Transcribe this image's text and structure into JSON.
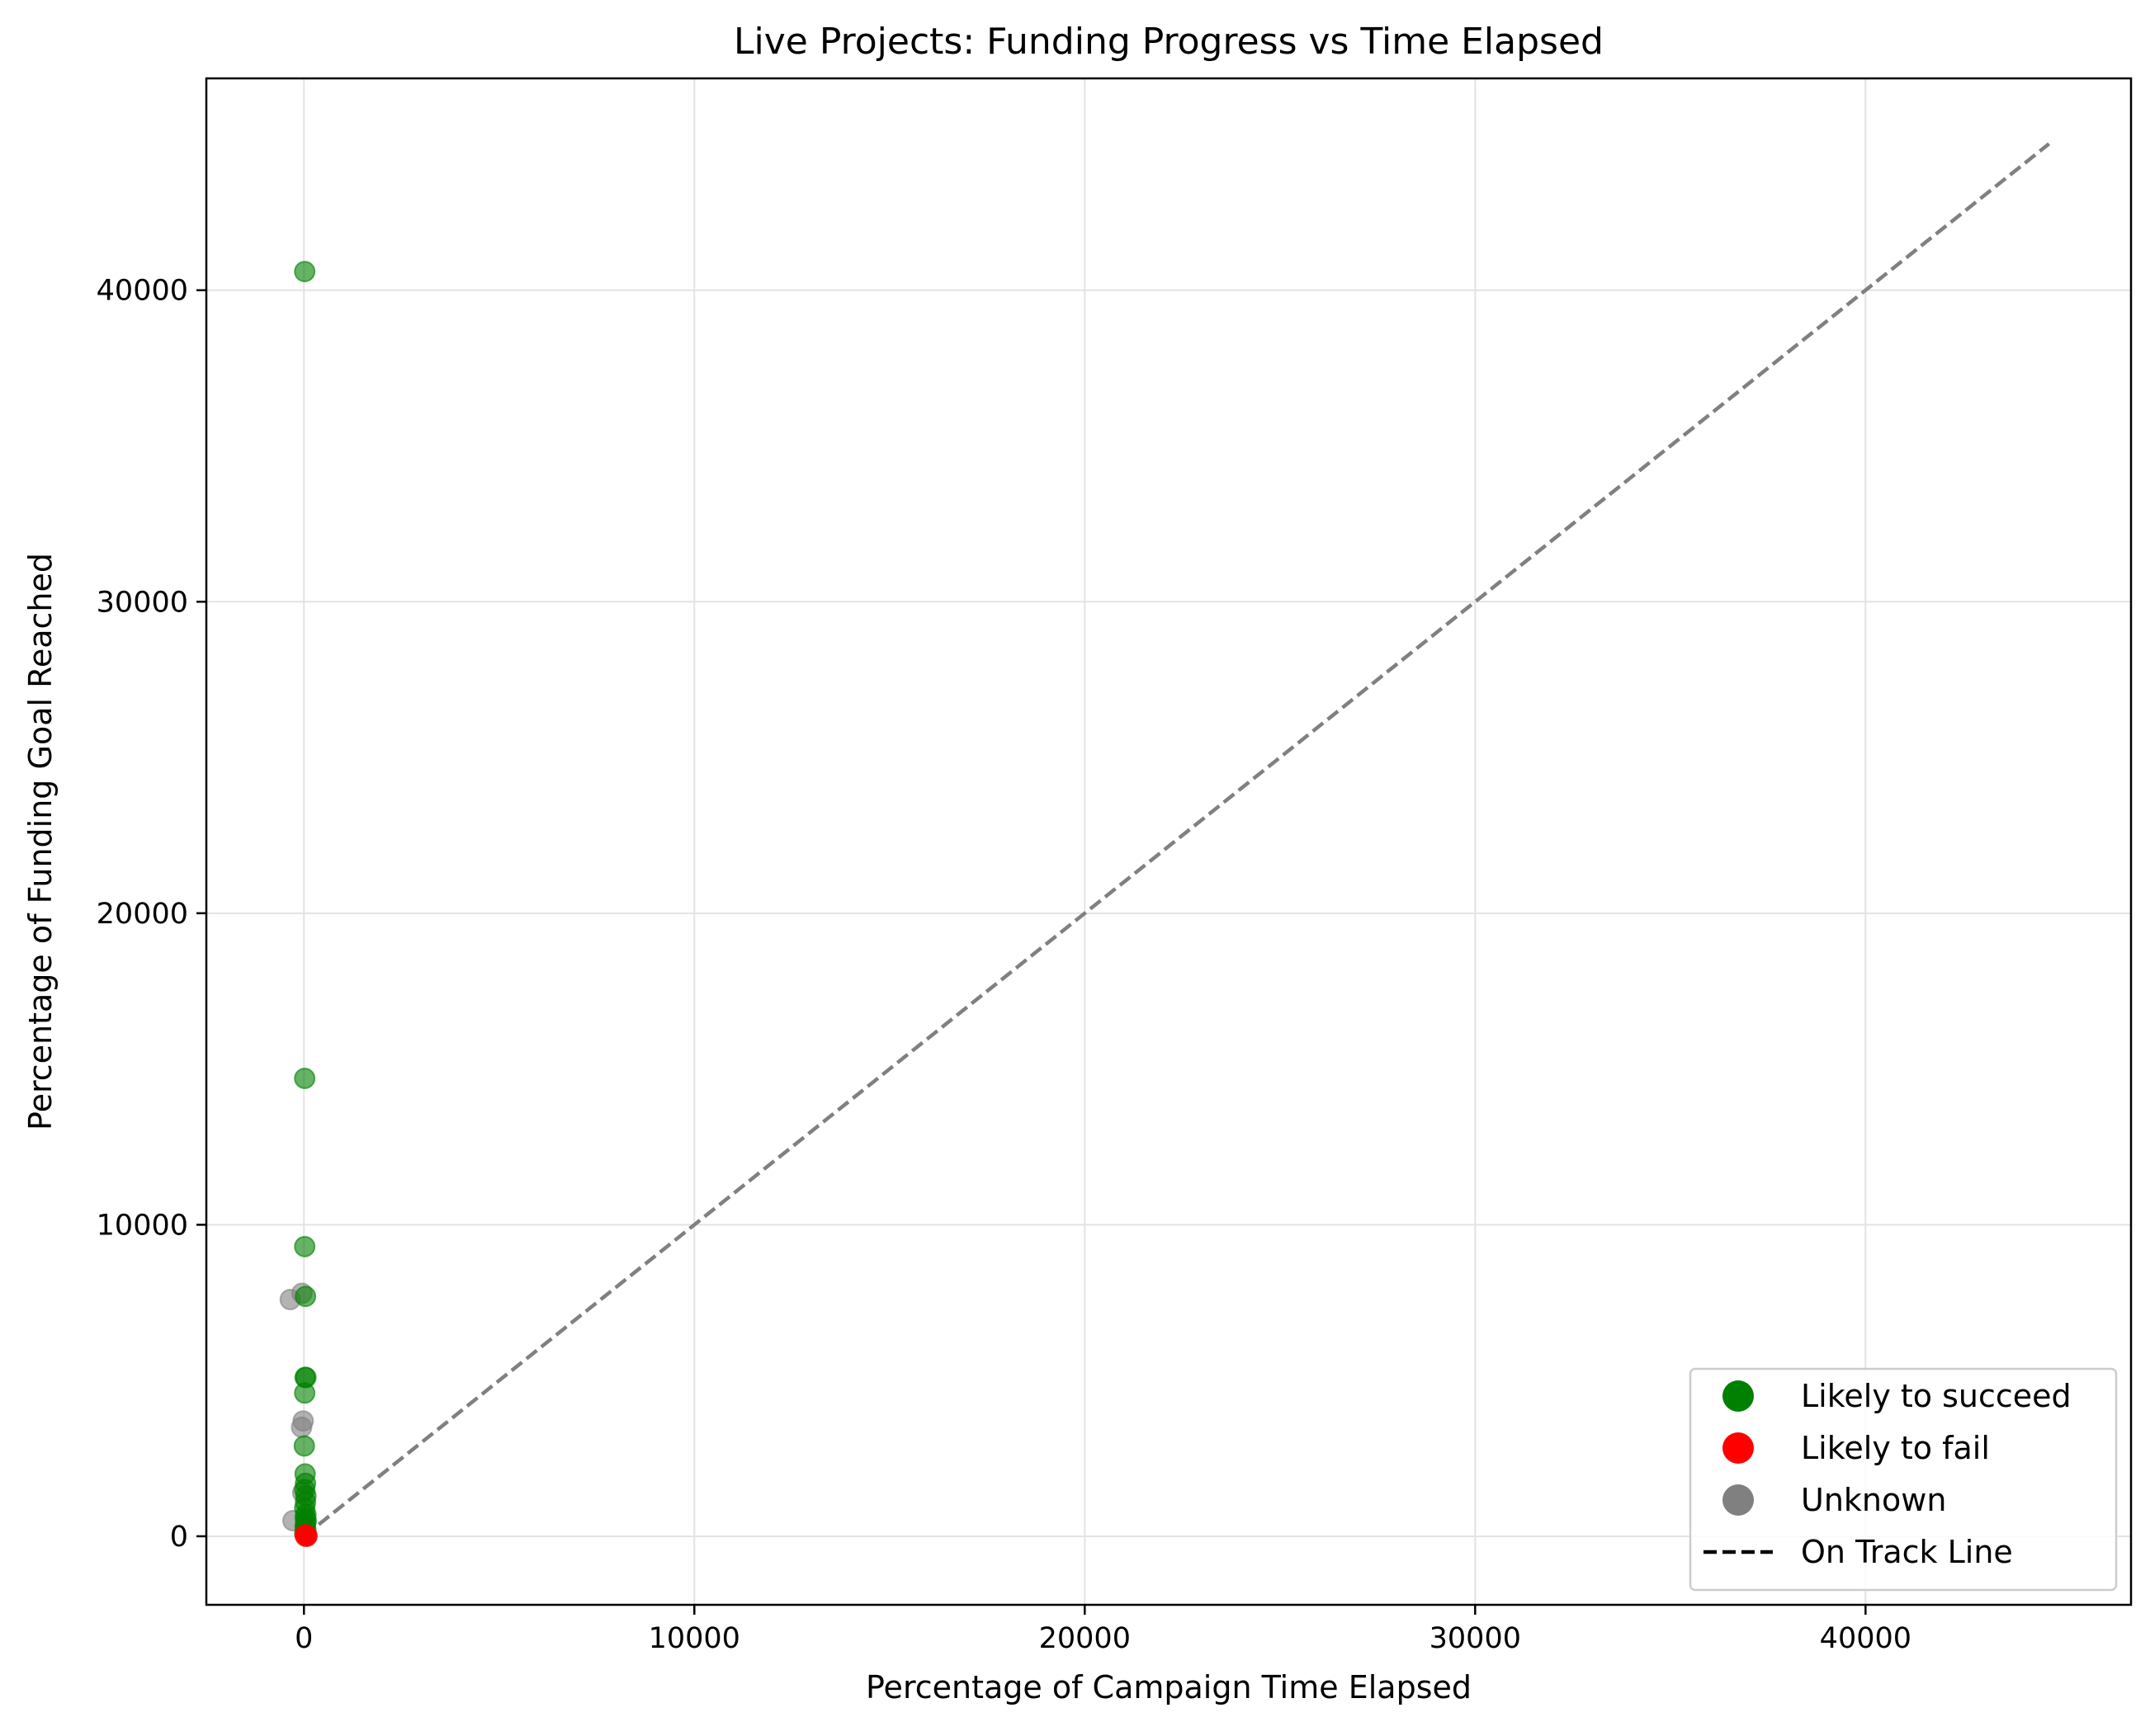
{
  "chart_data": {
    "type": "scatter",
    "title": "Live Projects: Funding Progress vs Time Elapsed",
    "xlabel": "Percentage of Campaign Time Elapsed",
    "ylabel": "Percentage of Funding Goal Reached",
    "xlim": [
      -2500,
      46800
    ],
    "ylim": [
      -2200,
      46800
    ],
    "xticks": [
      0,
      10000,
      20000,
      30000,
      40000
    ],
    "yticks": [
      0,
      10000,
      20000,
      30000,
      40000
    ],
    "x_tick_labels": [
      "0",
      "10000",
      "20000",
      "30000",
      "40000"
    ],
    "y_tick_labels": [
      "0",
      "10000",
      "20000",
      "30000",
      "40000"
    ],
    "grid": true,
    "legend_position": "bottom-right",
    "colors": {
      "succeed": "#008000",
      "fail": "#ff0000",
      "unknown": "#808080",
      "on_track_line": "#808080",
      "legend_line": "#000000"
    },
    "series": [
      {
        "name": "Likely to succeed",
        "color": "#008000",
        "points": [
          [
            20,
            40600
          ],
          [
            20,
            14700
          ],
          [
            20,
            9300
          ],
          [
            40,
            7700
          ],
          [
            50,
            5100
          ],
          [
            30,
            5100
          ],
          [
            20,
            4600
          ],
          [
            10,
            2900
          ],
          [
            30,
            2000
          ],
          [
            40,
            1700
          ],
          [
            20,
            1500
          ],
          [
            50,
            1300
          ],
          [
            40,
            1100
          ],
          [
            20,
            900
          ],
          [
            50,
            700
          ],
          [
            30,
            600
          ],
          [
            60,
            500
          ],
          [
            40,
            400
          ],
          [
            30,
            300
          ],
          [
            50,
            200
          ],
          [
            20,
            100
          ]
        ]
      },
      {
        "name": "Likely to fail",
        "color": "#ff0000",
        "points": [
          [
            30,
            50
          ],
          [
            60,
            20
          ],
          [
            80,
            10
          ],
          [
            40,
            5
          ],
          [
            70,
            2
          ]
        ]
      },
      {
        "name": "Unknown",
        "color": "#808080",
        "points": [
          [
            -350,
            7600
          ],
          [
            -50,
            7800
          ],
          [
            -20,
            3700
          ],
          [
            -60,
            3500
          ],
          [
            -30,
            1400
          ],
          [
            -280,
            500
          ]
        ]
      }
    ],
    "reference_line": {
      "name": "On Track Line",
      "x": [
        0,
        44700
      ],
      "y": [
        0,
        44700
      ]
    },
    "legend": [
      {
        "label": "Likely to succeed",
        "marker": "circle",
        "color": "#008000"
      },
      {
        "label": "Likely to fail",
        "marker": "circle",
        "color": "#ff0000"
      },
      {
        "label": "Unknown",
        "marker": "circle",
        "color": "#808080"
      },
      {
        "label": "On Track Line",
        "marker": "dashed-line",
        "color": "#000000"
      }
    ]
  }
}
